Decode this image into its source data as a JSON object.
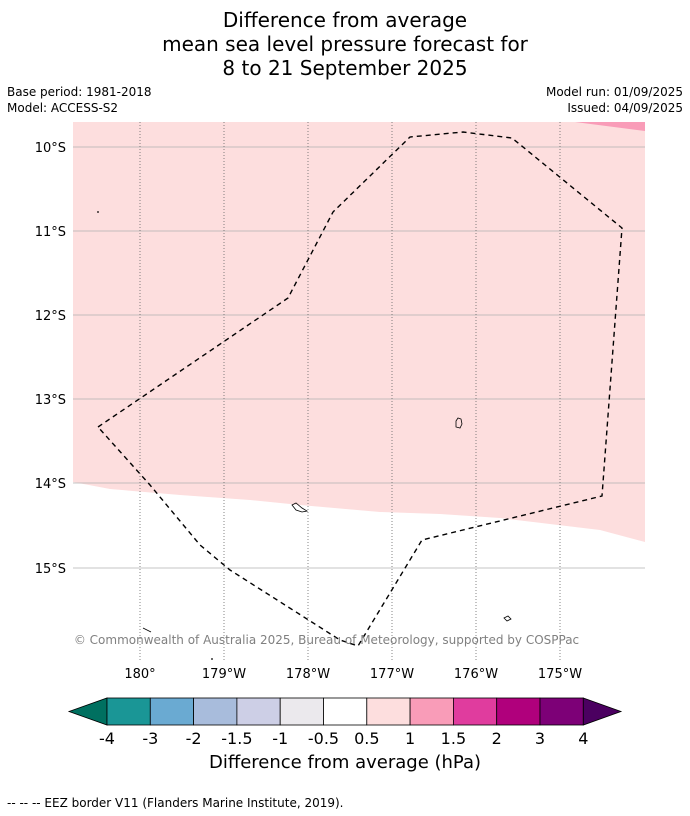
{
  "title": {
    "line1": "Difference from average",
    "line2": "mean sea level pressure forecast for",
    "line3": "8 to 21 September 2025"
  },
  "meta": {
    "base_period": "Base period: 1981-2018",
    "model": "Model: ACCESS-S2",
    "model_run": "Model run: 01/09/2025",
    "issued": "Issued: 04/09/2025"
  },
  "map": {
    "lat_labels": [
      "10°S",
      "11°S",
      "12°S",
      "13°S",
      "14°S",
      "15°S"
    ],
    "lon_labels": [
      "180°",
      "179°W",
      "178°W",
      "177°W",
      "176°W",
      "175°W"
    ],
    "copyright": "© Commonwealth of Australia 2025, Bureau of Meteorology, supported by COSPPac",
    "colors": {
      "band_0_5_1": "#fddede",
      "band_1_1_5": "#f99cb8",
      "background": "#ffffff"
    }
  },
  "colorbar": {
    "label": "Difference from average (hPa)",
    "ticks": [
      "-4",
      "-3",
      "-2",
      "-1.5",
      "-1",
      "-0.5",
      "0.5",
      "1",
      "1.5",
      "2",
      "3",
      "4"
    ],
    "colors": [
      "#007060",
      "#1a9696",
      "#6aaad2",
      "#a8bcdc",
      "#cdcfe6",
      "#ebe9ed",
      "#ffffff",
      "#fddede",
      "#f99cb8",
      "#e03c9e",
      "#b0007c",
      "#7d0077",
      "#4b0060"
    ]
  },
  "footnote": "-- -- -- EEZ border V11 (Flanders Marine Institute, 2019)."
}
